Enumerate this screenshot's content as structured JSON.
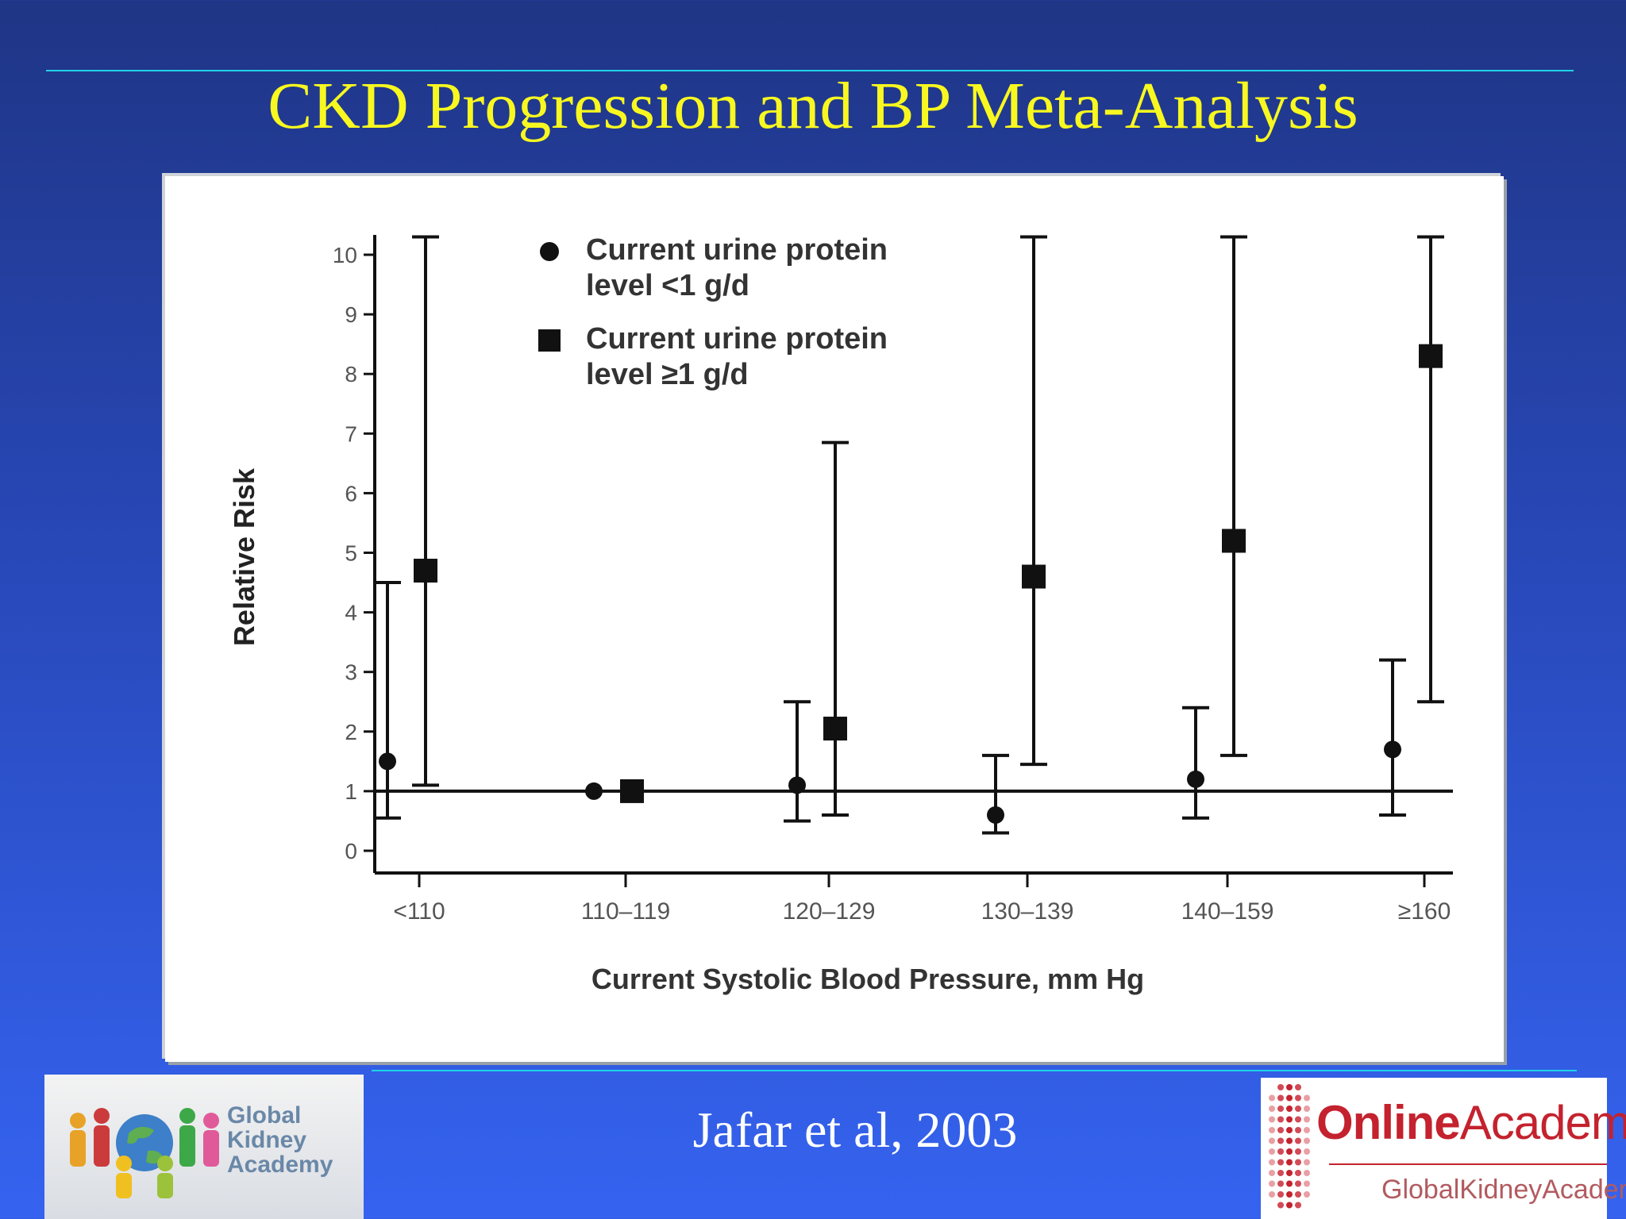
{
  "slide": {
    "title": "CKD Progression and BP Meta-Analysis",
    "citation": "Jafar et al, 2003"
  },
  "logos": {
    "left": {
      "icon": "people-around-globe-icon",
      "line1": "Global",
      "line2": "Kidney",
      "line3": "Academy"
    },
    "right": {
      "icon": "dot-grid-icon",
      "bold": "Online",
      "regular": "Academy",
      "sub": "GlobalKidneyAcademy"
    }
  },
  "colors": {
    "title": "#f8f820",
    "rule": "#1fd3e8",
    "background": "#2848b8",
    "logo_red": "#c4222e"
  },
  "chart_data": {
    "type": "scatter",
    "title": "",
    "xlabel": "Current Systolic Blood Pressure, mm Hg",
    "ylabel": "Relative Risk",
    "categories": [
      "<110",
      "110–119",
      "120–129",
      "130–139",
      "140–159",
      "≥160"
    ],
    "ylim": [
      0,
      10
    ],
    "yticks": [
      "0",
      "1",
      "2",
      "3",
      "4",
      "5",
      "6",
      "7",
      "8",
      "9",
      "10"
    ],
    "reference_line": 1,
    "grid": false,
    "legend_position": "top-left",
    "series": [
      {
        "name": "Current urine protein level <1 g/d",
        "name_lines": [
          "Current urine protein",
          "level <1 g/d"
        ],
        "marker": "circle",
        "values": [
          1.5,
          1.0,
          1.1,
          0.6,
          1.2,
          1.7
        ],
        "lower": [
          0.55,
          null,
          0.5,
          0.3,
          0.55,
          0.6
        ],
        "upper": [
          4.5,
          null,
          2.5,
          1.6,
          2.4,
          3.2
        ]
      },
      {
        "name": "Current urine protein level ≥1 g/d",
        "name_lines": [
          "Current urine protein",
          "level ≥1 g/d"
        ],
        "marker": "square",
        "values": [
          4.7,
          1.0,
          2.05,
          4.6,
          5.2,
          8.3
        ],
        "lower": [
          1.1,
          null,
          0.6,
          1.45,
          1.6,
          2.5
        ],
        "upper": [
          10.3,
          null,
          6.85,
          10.3,
          10.3,
          10.3
        ]
      }
    ]
  }
}
